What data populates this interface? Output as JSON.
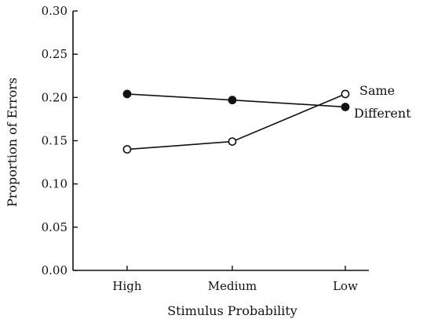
{
  "chart_data": {
    "type": "line",
    "title": "",
    "xlabel": "Stimulus Probability",
    "ylabel": "Proportion of Errors",
    "categories": [
      "High",
      "Medium",
      "Low"
    ],
    "ylim": [
      0.0,
      0.3
    ],
    "yticks": [
      "0.00",
      "0.05",
      "0.10",
      "0.15",
      "0.20",
      "0.25",
      "0.30"
    ],
    "grid": false,
    "series": [
      {
        "name": "Same",
        "marker": "open-circle",
        "values": [
          0.14,
          0.149,
          0.204
        ]
      },
      {
        "name": "Different",
        "marker": "filled-circle",
        "values": [
          0.204,
          0.197,
          0.189
        ]
      }
    ]
  }
}
